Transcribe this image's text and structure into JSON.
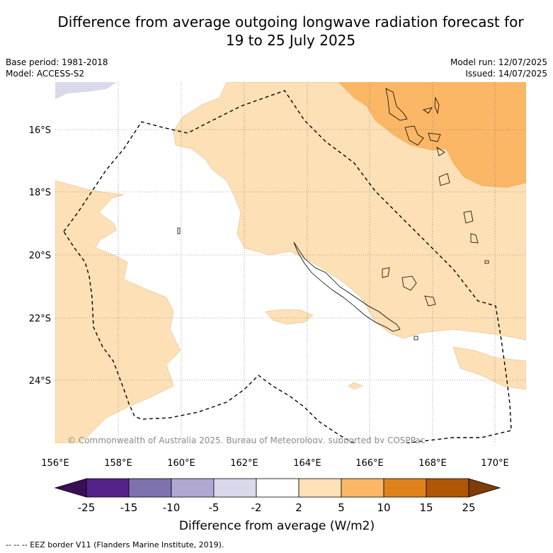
{
  "title_line1": "Difference from average outgoing longwave radiation forecast for",
  "title_line2": "19 to 25 July 2025",
  "base_period": "Base period: 1981-2018",
  "model": "Model: ACCESS-S2",
  "model_run": "Model run: 12/07/2025",
  "issued": "Issued: 14/07/2025",
  "copyright": "© Commonwealth of Australia 2025, Bureau of Meteorology, supported by COSPPac",
  "lon_labels": [
    "156°E",
    "158°E",
    "160°E",
    "162°E",
    "164°E",
    "166°E",
    "168°E",
    "170°E"
  ],
  "lat_labels": [
    "16°S",
    "18°S",
    "20°S",
    "22°S",
    "24°S"
  ],
  "colorbar": {
    "ticks": [
      "-25",
      "-15",
      "-10",
      "-5",
      "-2",
      "2",
      "5",
      "10",
      "15",
      "25"
    ],
    "colors": [
      "#3b0f55",
      "#552289",
      "#7f70ae",
      "#b1a8d2",
      "#d9d9eb",
      "#ffffff",
      "#fde0b6",
      "#fbb766",
      "#e0821c",
      "#b05706",
      "#7f3b08"
    ],
    "title": "Difference from average (W/m2)"
  },
  "footer": "--  --  -- EEZ border V11 (Flanders Marine Institute, 2019)."
}
